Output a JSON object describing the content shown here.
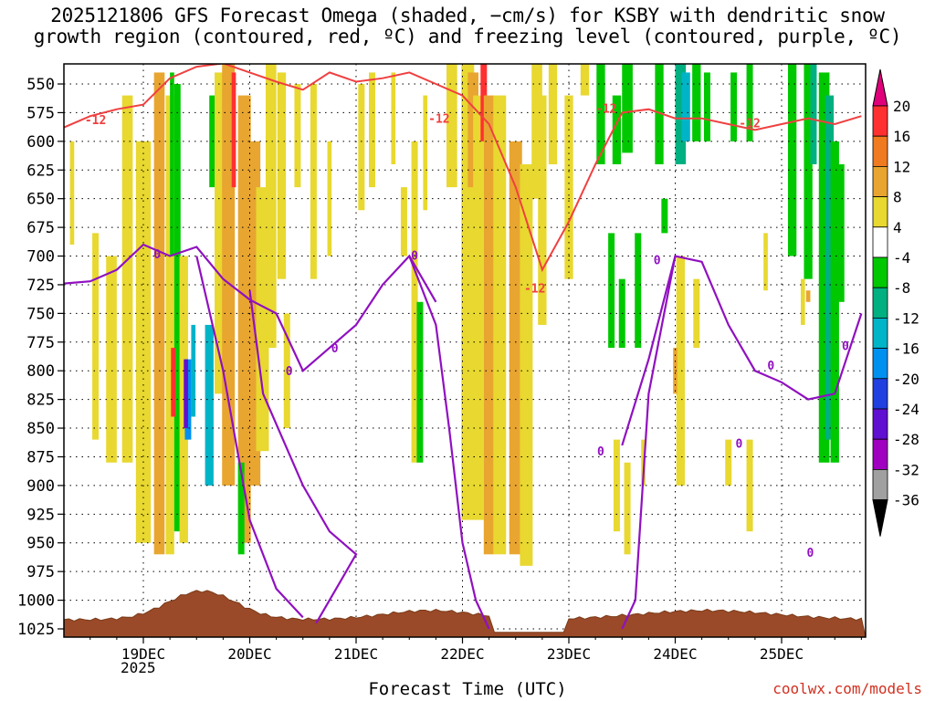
{
  "chart_data": {
    "type": "heatmap",
    "title_lines": [
      "2025121806 GFS Forecast Omega (shaded, −cm/s) for KSBY with dendritic snow",
      "growth region (contoured, red, ºC) and freezing level (contoured, purple, ºC)"
    ],
    "xlabel": "Forecast Time (UTC)",
    "x_ticks": [
      "19DEC",
      "20DEC",
      "21DEC",
      "22DEC",
      "23DEC",
      "24DEC",
      "25DEC"
    ],
    "x_tick_year": "2025",
    "y_ticks": [
      "550",
      "575",
      "600",
      "625",
      "650",
      "675",
      "700",
      "725",
      "750",
      "775",
      "800",
      "825",
      "850",
      "875",
      "900",
      "925",
      "950",
      "975",
      "1000",
      "1025"
    ],
    "y_range": [
      530,
      1035
    ],
    "colorbar": {
      "labels": [
        "20",
        "16",
        "12",
        "8",
        "4",
        "-4",
        "-8",
        "-12",
        "-16",
        "-20",
        "-24",
        "-28",
        "-32",
        "-36"
      ],
      "colors": [
        "#e0007a",
        "#ff3030",
        "#f07a20",
        "#e8a530",
        "#e8d830",
        "#ffffff",
        "#00c800",
        "#00b080",
        "#00b4c8",
        "#0090f0",
        "#2040e0",
        "#6010d0",
        "#a000c0",
        "#a0a0a0",
        "#000000"
      ]
    },
    "contours": {
      "dgz_label": "-12",
      "dgz_color": "#f04040",
      "freezing_label": "0",
      "freezing_color": "#9010c0"
    },
    "dgz_top_level": [
      [
        "18/06",
        588
      ],
      [
        "18/12",
        578
      ],
      [
        "18/18",
        572
      ],
      [
        "19/00",
        568
      ],
      [
        "19/06",
        545
      ],
      [
        "19/12",
        535
      ],
      [
        "19/18",
        532
      ],
      [
        "20/00",
        540
      ],
      [
        "20/06",
        548
      ],
      [
        "20/12",
        555
      ],
      [
        "20/18",
        540
      ],
      [
        "21/00",
        548
      ],
      [
        "21/06",
        545
      ],
      [
        "21/12",
        540
      ],
      [
        "21/18",
        550
      ],
      [
        "22/00",
        560
      ],
      [
        "22/06",
        585
      ],
      [
        "22/12",
        640
      ],
      [
        "22/18",
        712
      ],
      [
        "23/00",
        670
      ],
      [
        "23/06",
        620
      ],
      [
        "23/12",
        575
      ],
      [
        "23/18",
        572
      ],
      [
        "24/00",
        580
      ],
      [
        "24/06",
        580
      ],
      [
        "24/12",
        585
      ],
      [
        "24/18",
        590
      ],
      [
        "25/00",
        585
      ],
      [
        "25/06",
        580
      ],
      [
        "25/12",
        585
      ],
      [
        "25/18",
        578
      ]
    ],
    "freezing_level_left": [
      [
        "18/06",
        724
      ],
      [
        "18/12",
        722
      ],
      [
        "18/18",
        712
      ],
      [
        "19/00",
        690
      ],
      [
        "19/06",
        700
      ],
      [
        "19/12",
        692
      ],
      [
        "19/18",
        720
      ],
      [
        "20/00",
        738
      ],
      [
        "20/06",
        750
      ],
      [
        "20/12",
        800
      ],
      [
        "20/18",
        780
      ],
      [
        "21/00",
        760
      ],
      [
        "21/06",
        725
      ],
      [
        "21/12",
        700
      ],
      [
        "21/18",
        740
      ]
    ],
    "freezing_level_right": [
      [
        "23/12",
        865
      ],
      [
        "23/18",
        790
      ],
      [
        "24/00",
        700
      ],
      [
        "24/06",
        705
      ],
      [
        "24/12",
        760
      ],
      [
        "24/18",
        800
      ],
      [
        "25/00",
        810
      ],
      [
        "25/06",
        825
      ],
      [
        "25/12",
        820
      ],
      [
        "25/18",
        750
      ]
    ]
  },
  "credit": "coolwx.com/models"
}
